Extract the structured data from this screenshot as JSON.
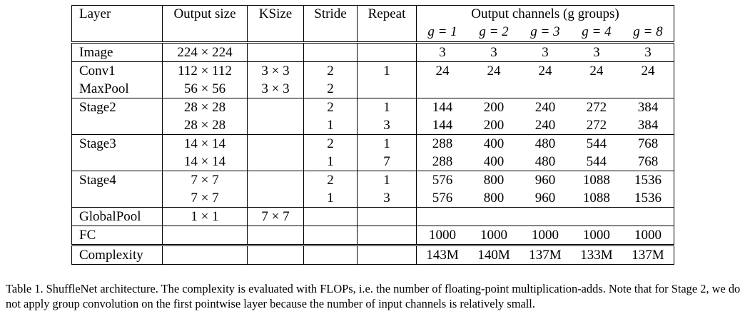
{
  "table": {
    "header": [
      "Layer",
      "Output size",
      "KSize",
      "Stride",
      "Repeat",
      "Output channels (g groups)"
    ],
    "groups": [
      "g = 1",
      "g = 2",
      "g = 3",
      "g = 4",
      "g = 8"
    ],
    "rows": [
      [
        "Image",
        "224 × 224",
        null,
        null,
        null,
        3,
        3,
        3,
        3,
        3
      ],
      [
        "Conv1",
        "112 × 112",
        "3 × 3",
        2,
        1,
        24,
        24,
        24,
        24,
        24
      ],
      [
        "MaxPool",
        "56 × 56",
        "3 × 3",
        2,
        null,
        null,
        null,
        null,
        null,
        null
      ],
      [
        "Stage2",
        "28 × 28",
        null,
        2,
        1,
        144,
        200,
        240,
        272,
        384
      ],
      [
        null,
        "28 × 28",
        null,
        1,
        3,
        144,
        200,
        240,
        272,
        384
      ],
      [
        "Stage3",
        "14 × 14",
        null,
        2,
        1,
        288,
        400,
        480,
        544,
        768
      ],
      [
        null,
        "14 × 14",
        null,
        1,
        7,
        288,
        400,
        480,
        544,
        768
      ],
      [
        "Stage4",
        "7 × 7",
        null,
        2,
        1,
        576,
        800,
        960,
        1088,
        1536
      ],
      [
        null,
        "7 × 7",
        null,
        1,
        3,
        576,
        800,
        960,
        1088,
        1536
      ],
      [
        "GlobalPool",
        "1 × 1",
        "7 × 7",
        null,
        null,
        null,
        null,
        null,
        null,
        null
      ],
      [
        "FC",
        null,
        null,
        null,
        null,
        1000,
        1000,
        1000,
        1000,
        1000
      ],
      [
        "Complexity",
        null,
        null,
        null,
        null,
        "143M",
        "140M",
        "137M",
        "133M",
        "137M"
      ]
    ]
  },
  "caption": "Table 1. ShuffleNet architecture. The complexity is evaluated with FLOPs, i.e. the number of floating-point multiplication-adds. Note that for Stage 2, we do not apply group convolution on the first pointwise layer because the number of input channels is relatively small."
}
